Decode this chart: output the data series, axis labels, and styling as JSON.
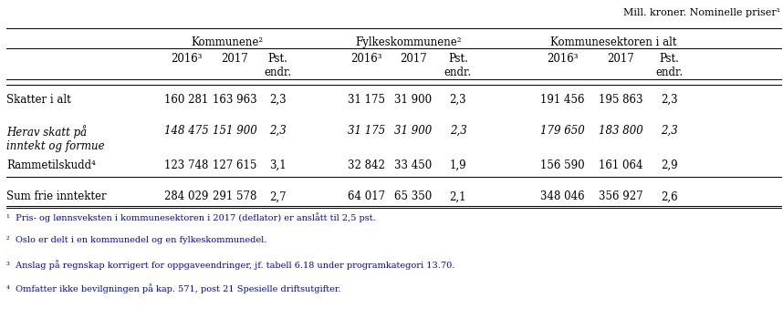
{
  "top_right_label": "Mill. kroner. Nominelle priser¹",
  "col_groups": [
    {
      "label": "Kommunene²"
    },
    {
      "label": "Fylkeskommunene²"
    },
    {
      "label": "Kommunesektoren i alt"
    }
  ],
  "sub_headers": [
    "2016³",
    "2017",
    "Pst.\nendr."
  ],
  "rows": [
    {
      "label": "Skatter i alt",
      "italic": false,
      "values": [
        "160 281",
        "163 963",
        "2,3",
        "31 175",
        "31 900",
        "2,3",
        "191 456",
        "195 863",
        "2,3"
      ],
      "top_line": true,
      "bottom_line": false
    },
    {
      "label": "Herav skatt på\ninntekt og formue",
      "italic": true,
      "values": [
        "148 475",
        "151 900",
        "2,3",
        "31 175",
        "31 900",
        "2,3",
        "179 650",
        "183 800",
        "2,3"
      ],
      "top_line": false,
      "bottom_line": false
    },
    {
      "label": "Rammetilskudd⁴",
      "italic": false,
      "values": [
        "123 748",
        "127 615",
        "3,1",
        "32 842",
        "33 450",
        "1,9",
        "156 590",
        "161 064",
        "2,9"
      ],
      "top_line": false,
      "bottom_line": false
    },
    {
      "label": "Sum frie inntekter",
      "italic": false,
      "values": [
        "284 029",
        "291 578",
        "2,7",
        "64 017",
        "65 350",
        "2,1",
        "348 046",
        "356 927",
        "2,6"
      ],
      "top_line": true,
      "bottom_line": true
    }
  ],
  "footnotes": [
    "¹  Pris- og lønnsveksten i kommunesektoren i 2017 (deflator) er anslått til 2,5 pst.",
    "²  Oslo er delt i en kommunedel og en fylkeskommunedel.",
    "³  Anslag på regnskap korrigert for oppgaveendringer, jf. tabell 6.18 under programkategori 13.70.",
    "⁴  Omfatter ikke bevilgningen på kap. 571, post 21 Spesielle driftsutgifter."
  ],
  "footnote_color": "#0000cc",
  "normal_color": "#000000",
  "font_family": "serif",
  "font_size": 8.5
}
